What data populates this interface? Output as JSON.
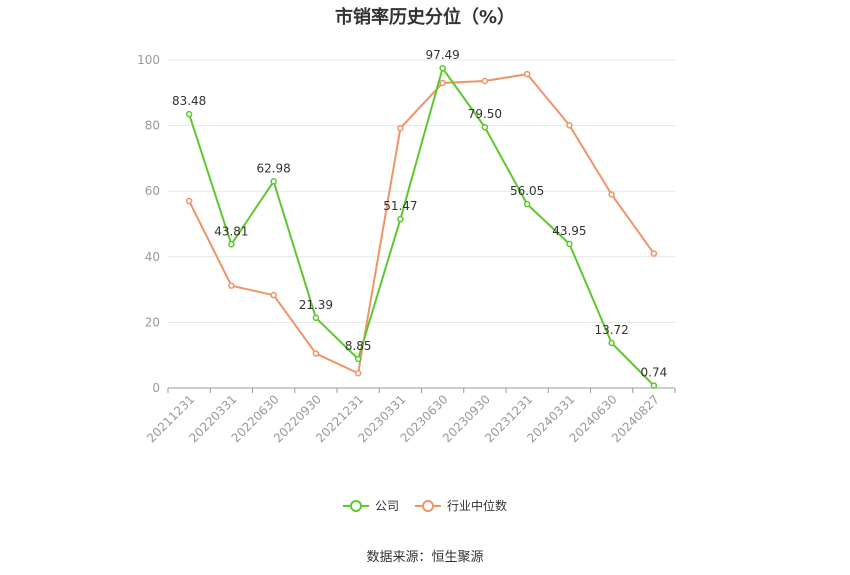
{
  "chart_data": {
    "type": "line",
    "title": "市销率历史分位（%）",
    "categories": [
      "20211231",
      "20220331",
      "20220630",
      "20220930",
      "20221231",
      "20230331",
      "20230630",
      "20230930",
      "20231231",
      "20240331",
      "20240630",
      "20240827"
    ],
    "series": [
      {
        "name": "公司",
        "color": "#5cc82e",
        "values": [
          83.48,
          43.81,
          62.98,
          21.39,
          8.85,
          51.47,
          97.49,
          79.5,
          56.05,
          43.95,
          13.72,
          0.74
        ],
        "labels": [
          "83.48",
          "43.81",
          "62.98",
          "21.39",
          "8.85",
          "51.47",
          "97.49",
          "79.50",
          "56.05",
          "43.95",
          "13.72",
          "0.74"
        ]
      },
      {
        "name": "行业中位数",
        "color": "#f09468",
        "values": [
          57.0,
          31.2,
          28.3,
          10.5,
          4.5,
          79.2,
          93.0,
          93.6,
          95.7,
          80.1,
          59.0,
          41.0
        ]
      }
    ],
    "ylim": [
      0,
      100
    ],
    "yticks": [
      0,
      20,
      40,
      60,
      80,
      100
    ],
    "grid": true,
    "legend_position": "bottom"
  },
  "source": "数据来源：恒生聚源"
}
